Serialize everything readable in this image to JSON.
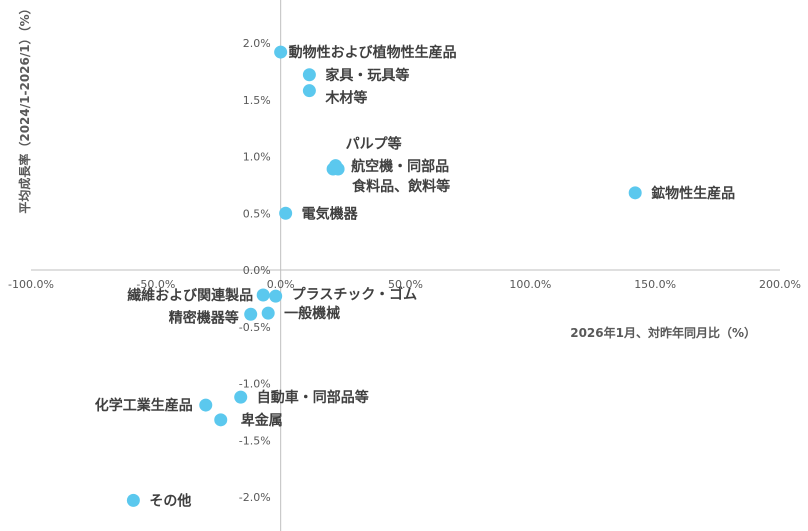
{
  "chart_data": {
    "type": "scatter",
    "xlabel": "2026年1月、対昨年同月比（%）",
    "ylabel": "平均成長率（2024/1-2026/1）（%）",
    "xlim": [
      -100,
      200
    ],
    "ylim": [
      -2.3,
      2.3
    ],
    "x_ticks": [
      -100,
      -50,
      0,
      50,
      100,
      150,
      200
    ],
    "x_tick_labels": [
      "-100.0%",
      "-50.0%",
      "0.0%",
      "50.0%",
      "100.0%",
      "150.0%",
      "200.0%"
    ],
    "y_ticks": [
      2.0,
      1.5,
      1.0,
      0.5,
      0.0,
      -0.5,
      -1.0,
      -1.5,
      -2.0
    ],
    "y_tick_labels": [
      "2.0%",
      "1.5%",
      "1.0%",
      "0.5%",
      "0.0%",
      "-0.5%",
      "-1.0%",
      "-1.5%",
      "-2.0%"
    ],
    "grid": false,
    "marker_color": "#5bc8ee",
    "points": [
      {
        "label": "動物性および植物性生産品",
        "x": 0,
        "y": 1.92
      },
      {
        "label": "家具・玩具等",
        "x": 11.5,
        "y": 1.72
      },
      {
        "label": "木材等",
        "x": 11.5,
        "y": 1.58
      },
      {
        "label": "パルプ等",
        "x": 22,
        "y": 0.92
      },
      {
        "label": "航空機・同部品",
        "x": 21,
        "y": 0.89
      },
      {
        "label": "食料品、飲料等",
        "x": 23,
        "y": 0.89
      },
      {
        "label": "鉱物性生産品",
        "x": 142,
        "y": 0.68
      },
      {
        "label": "電気機器",
        "x": 2,
        "y": 0.5
      },
      {
        "label": "繊維および関連製品",
        "x": -7,
        "y": -0.22
      },
      {
        "label": "プラスチック・ゴム",
        "x": -2,
        "y": -0.23
      },
      {
        "label": "精密機器等",
        "x": -12,
        "y": -0.39
      },
      {
        "label": "一般機械",
        "x": -5,
        "y": -0.38
      },
      {
        "label": "自動車・同部品等",
        "x": -16,
        "y": -1.12
      },
      {
        "label": "化学工業生産品",
        "x": -30,
        "y": -1.19
      },
      {
        "label": "卑金属",
        "x": -24,
        "y": -1.32
      },
      {
        "label": "その他",
        "x": -59,
        "y": -2.03
      }
    ]
  }
}
